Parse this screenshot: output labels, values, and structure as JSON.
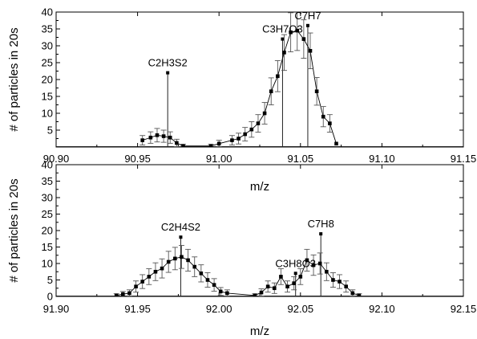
{
  "chart_data": [
    {
      "type": "scatter",
      "xlabel": "m/z",
      "ylabel": "# of particles in 20s",
      "xlim": [
        90.9,
        91.15
      ],
      "ylim": [
        0,
        40
      ],
      "xticks": [
        "90.90",
        "90.95",
        "91.00",
        "91.05",
        "91.10",
        "91.15"
      ],
      "yticks": [
        "5",
        "10",
        "15",
        "20",
        "25",
        "30",
        "35",
        "40"
      ],
      "series": [
        {
          "points": [
            {
              "x": 90.953,
              "y": 2.0,
              "err": 1.4
            },
            {
              "x": 90.958,
              "y": 2.8,
              "err": 1.7
            },
            {
              "x": 90.962,
              "y": 3.5,
              "err": 2.0
            },
            {
              "x": 90.966,
              "y": 3.2,
              "err": 1.8
            },
            {
              "x": 90.97,
              "y": 2.8,
              "err": 1.7
            },
            {
              "x": 90.974,
              "y": 1.2,
              "err": 1.1
            },
            {
              "x": 90.978,
              "y": 0.3,
              "err": 0.5
            },
            {
              "x": 90.995,
              "y": 0.3,
              "err": 0.5
            },
            {
              "x": 91.0,
              "y": 1.0,
              "err": 1.0
            },
            {
              "x": 91.008,
              "y": 2.0,
              "err": 1.4
            },
            {
              "x": 91.012,
              "y": 2.5,
              "err": 1.6
            },
            {
              "x": 91.016,
              "y": 3.8,
              "err": 2.0
            },
            {
              "x": 91.02,
              "y": 5.2,
              "err": 2.3
            },
            {
              "x": 91.024,
              "y": 7.0,
              "err": 2.6
            },
            {
              "x": 91.028,
              "y": 10.0,
              "err": 3.2
            },
            {
              "x": 91.032,
              "y": 16.5,
              "err": 4.0
            },
            {
              "x": 91.036,
              "y": 21.0,
              "err": 4.6
            },
            {
              "x": 91.04,
              "y": 28.0,
              "err": 5.3
            },
            {
              "x": 91.044,
              "y": 34.0,
              "err": 5.8
            },
            {
              "x": 91.048,
              "y": 34.5,
              "err": 5.9
            },
            {
              "x": 91.052,
              "y": 32.0,
              "err": 5.7
            },
            {
              "x": 91.056,
              "y": 28.5,
              "err": 5.3
            },
            {
              "x": 91.06,
              "y": 16.5,
              "err": 4.1
            },
            {
              "x": 91.064,
              "y": 9.0,
              "err": 3.0
            },
            {
              "x": 91.068,
              "y": 7.0,
              "err": 2.6
            },
            {
              "x": 91.072,
              "y": 1.0,
              "err": 0.0
            }
          ]
        }
      ],
      "sticks": [
        {
          "label": "C2H3S2",
          "x": 90.9685,
          "y": 22
        },
        {
          "label": "C3H7O3",
          "x": 91.039,
          "y": 32
        },
        {
          "label": "C7H7",
          "x": 91.0545,
          "y": 36
        }
      ]
    },
    {
      "type": "scatter",
      "xlabel": "m/z",
      "ylabel": "# of particles in 20s",
      "xlim": [
        91.9,
        92.15
      ],
      "ylim": [
        0,
        40
      ],
      "xticks": [
        "91.90",
        "91.95",
        "92.00",
        "92.05",
        "92.10",
        "92.15"
      ],
      "yticks": [
        "0",
        "5",
        "10",
        "15",
        "20",
        "25",
        "30",
        "35",
        "40"
      ],
      "series": [
        {
          "points": [
            {
              "x": 91.937,
              "y": 0.3,
              "err": 0.5
            },
            {
              "x": 91.941,
              "y": 0.7,
              "err": 0.8
            },
            {
              "x": 91.945,
              "y": 1.0,
              "err": 1.0
            },
            {
              "x": 91.949,
              "y": 3.0,
              "err": 1.7
            },
            {
              "x": 91.953,
              "y": 4.5,
              "err": 2.1
            },
            {
              "x": 91.957,
              "y": 6.0,
              "err": 2.4
            },
            {
              "x": 91.961,
              "y": 7.5,
              "err": 2.7
            },
            {
              "x": 91.965,
              "y": 8.5,
              "err": 2.9
            },
            {
              "x": 91.969,
              "y": 10.5,
              "err": 3.2
            },
            {
              "x": 91.973,
              "y": 11.5,
              "err": 3.4
            },
            {
              "x": 91.977,
              "y": 12.0,
              "err": 3.5
            },
            {
              "x": 91.981,
              "y": 11.0,
              "err": 3.3
            },
            {
              "x": 91.985,
              "y": 9.0,
              "err": 3.0
            },
            {
              "x": 91.989,
              "y": 7.0,
              "err": 2.6
            },
            {
              "x": 91.993,
              "y": 5.0,
              "err": 2.2
            },
            {
              "x": 91.997,
              "y": 3.5,
              "err": 1.9
            },
            {
              "x": 92.001,
              "y": 1.5,
              "err": 1.2
            },
            {
              "x": 92.005,
              "y": 1.0,
              "err": 1.0
            },
            {
              "x": 92.022,
              "y": 0.3,
              "err": 0.5
            },
            {
              "x": 92.026,
              "y": 1.2,
              "err": 1.1
            },
            {
              "x": 92.03,
              "y": 3.0,
              "err": 1.7
            },
            {
              "x": 92.034,
              "y": 2.5,
              "err": 1.6
            },
            {
              "x": 92.038,
              "y": 6.0,
              "err": 2.4
            },
            {
              "x": 92.042,
              "y": 3.0,
              "err": 1.7
            },
            {
              "x": 92.046,
              "y": 4.0,
              "err": 2.0
            },
            {
              "x": 92.05,
              "y": 6.0,
              "err": 2.4
            },
            {
              "x": 92.054,
              "y": 11.0,
              "err": 3.3
            },
            {
              "x": 92.058,
              "y": 9.5,
              "err": 3.1
            },
            {
              "x": 92.062,
              "y": 10.0,
              "err": 3.2
            },
            {
              "x": 92.066,
              "y": 7.5,
              "err": 2.7
            },
            {
              "x": 92.07,
              "y": 5.0,
              "err": 2.2
            },
            {
              "x": 92.074,
              "y": 4.5,
              "err": 2.1
            },
            {
              "x": 92.078,
              "y": 3.0,
              "err": 1.7
            },
            {
              "x": 92.082,
              "y": 1.0,
              "err": 1.0
            },
            {
              "x": 92.086,
              "y": 0.3,
              "err": 0.5
            }
          ]
        }
      ],
      "sticks": [
        {
          "label": "C2H4S2",
          "x": 91.9765,
          "y": 18
        },
        {
          "label": "C3H8O3",
          "x": 92.047,
          "y": 7
        },
        {
          "label": "C7H8",
          "x": 92.0625,
          "y": 19
        }
      ]
    }
  ]
}
